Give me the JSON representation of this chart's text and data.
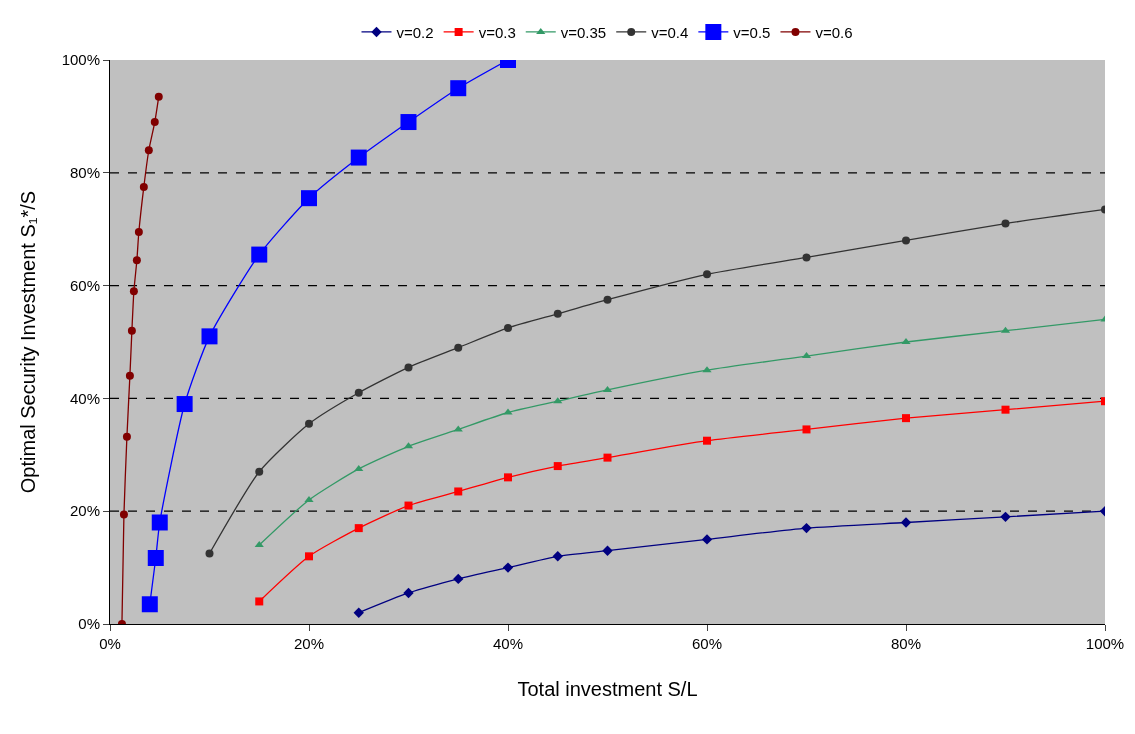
{
  "chart_data": {
    "type": "line",
    "xlabel": "Total investment S/L",
    "ylabel": "Optimal Security Investment S₁*/S",
    "xlim": [
      0,
      100
    ],
    "ylim": [
      0,
      100
    ],
    "xticks": [
      {
        "value": 0,
        "label": "0%"
      },
      {
        "value": 20,
        "label": "20%"
      },
      {
        "value": 40,
        "label": "40%"
      },
      {
        "value": 60,
        "label": "60%"
      },
      {
        "value": 80,
        "label": "80%"
      },
      {
        "value": 100,
        "label": "100%"
      }
    ],
    "yticks": [
      {
        "value": 0,
        "label": "0%"
      },
      {
        "value": 20,
        "label": "20%"
      },
      {
        "value": 40,
        "label": "40%"
      },
      {
        "value": 60,
        "label": "60%"
      },
      {
        "value": 80,
        "label": "80%"
      },
      {
        "value": 100,
        "label": "100%"
      }
    ],
    "grid": "y",
    "legend": "top",
    "series": [
      {
        "name": "v=0.2",
        "color": "#000080",
        "marker": "diamond",
        "x": [
          25,
          30,
          35,
          40,
          45,
          50,
          60,
          70,
          80,
          90,
          100
        ],
        "values": [
          2,
          5.5,
          8,
          10,
          12,
          13,
          15,
          17,
          18,
          19,
          20
        ]
      },
      {
        "name": "v=0.3",
        "color": "#ff0000",
        "marker": "square",
        "x": [
          15,
          20,
          25,
          30,
          35,
          40,
          45,
          50,
          60,
          70,
          80,
          90,
          100
        ],
        "values": [
          4,
          12,
          17,
          21,
          23.5,
          26,
          28,
          29.5,
          32.5,
          34.5,
          36.5,
          38,
          39.5
        ]
      },
      {
        "name": "v=0.35",
        "color": "#339966",
        "marker": "triangle",
        "x": [
          15,
          20,
          25,
          30,
          35,
          40,
          45,
          50,
          60,
          70,
          80,
          90,
          100
        ],
        "values": [
          14,
          22,
          27.5,
          31.5,
          34.5,
          37.5,
          39.5,
          41.5,
          45,
          47.5,
          50,
          52,
          54
        ]
      },
      {
        "name": "v=0.4",
        "color": "#333333",
        "marker": "circle",
        "x": [
          10,
          15,
          20,
          25,
          30,
          35,
          40,
          45,
          50,
          60,
          70,
          80,
          90,
          100
        ],
        "values": [
          12.5,
          27,
          35.5,
          41,
          45.5,
          49,
          52.5,
          55,
          57.5,
          62,
          65,
          68,
          71,
          73.5
        ]
      },
      {
        "name": "v=0.5",
        "color": "#0000ff",
        "marker": "square",
        "x": [
          4,
          4.6,
          5,
          7.5,
          10,
          15,
          20,
          25,
          30,
          35,
          40
        ],
        "values": [
          3.5,
          11.7,
          18,
          39,
          51,
          65.5,
          75.5,
          82.7,
          89,
          95,
          100
        ]
      },
      {
        "name": "v=0.6",
        "color": "#800000",
        "marker": "circle",
        "x": [
          1.2,
          1.4,
          1.7,
          2,
          2.2,
          2.4,
          2.7,
          2.9,
          3.4,
          3.9,
          4.5,
          4.9
        ],
        "values": [
          0,
          19.4,
          33.2,
          44,
          52,
          59,
          64.5,
          69.5,
          77.5,
          84,
          89,
          93.5
        ]
      }
    ]
  }
}
